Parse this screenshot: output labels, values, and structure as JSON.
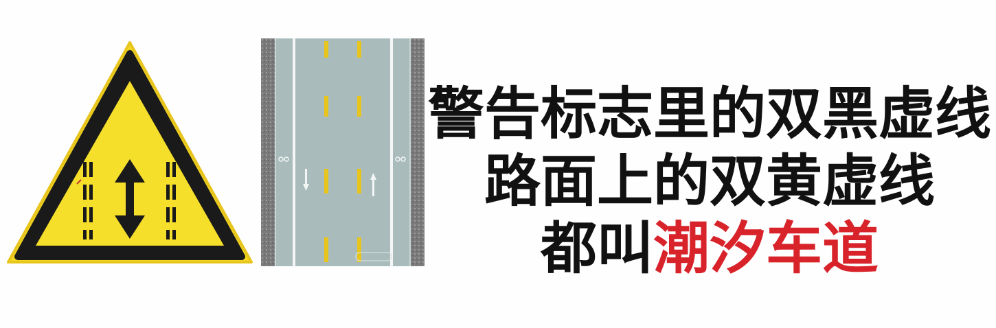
{
  "caption": {
    "line1": "警告标志里的双黑虚线",
    "line2": "路面上的双黄虚线",
    "line3_prefix": "都叫",
    "line3_highlight": "潮汐车道"
  },
  "sign": {
    "icon": "tidal-lane-warning-sign",
    "background_color": "#f6df2b",
    "border_color": "#1a1a1a"
  },
  "road": {
    "icon": "double-yellow-dashed-road-marking",
    "asphalt_color": "#a9bcbb",
    "line_color": "#e8c51c"
  },
  "colors": {
    "text": "#111111",
    "highlight": "#d8232a"
  }
}
